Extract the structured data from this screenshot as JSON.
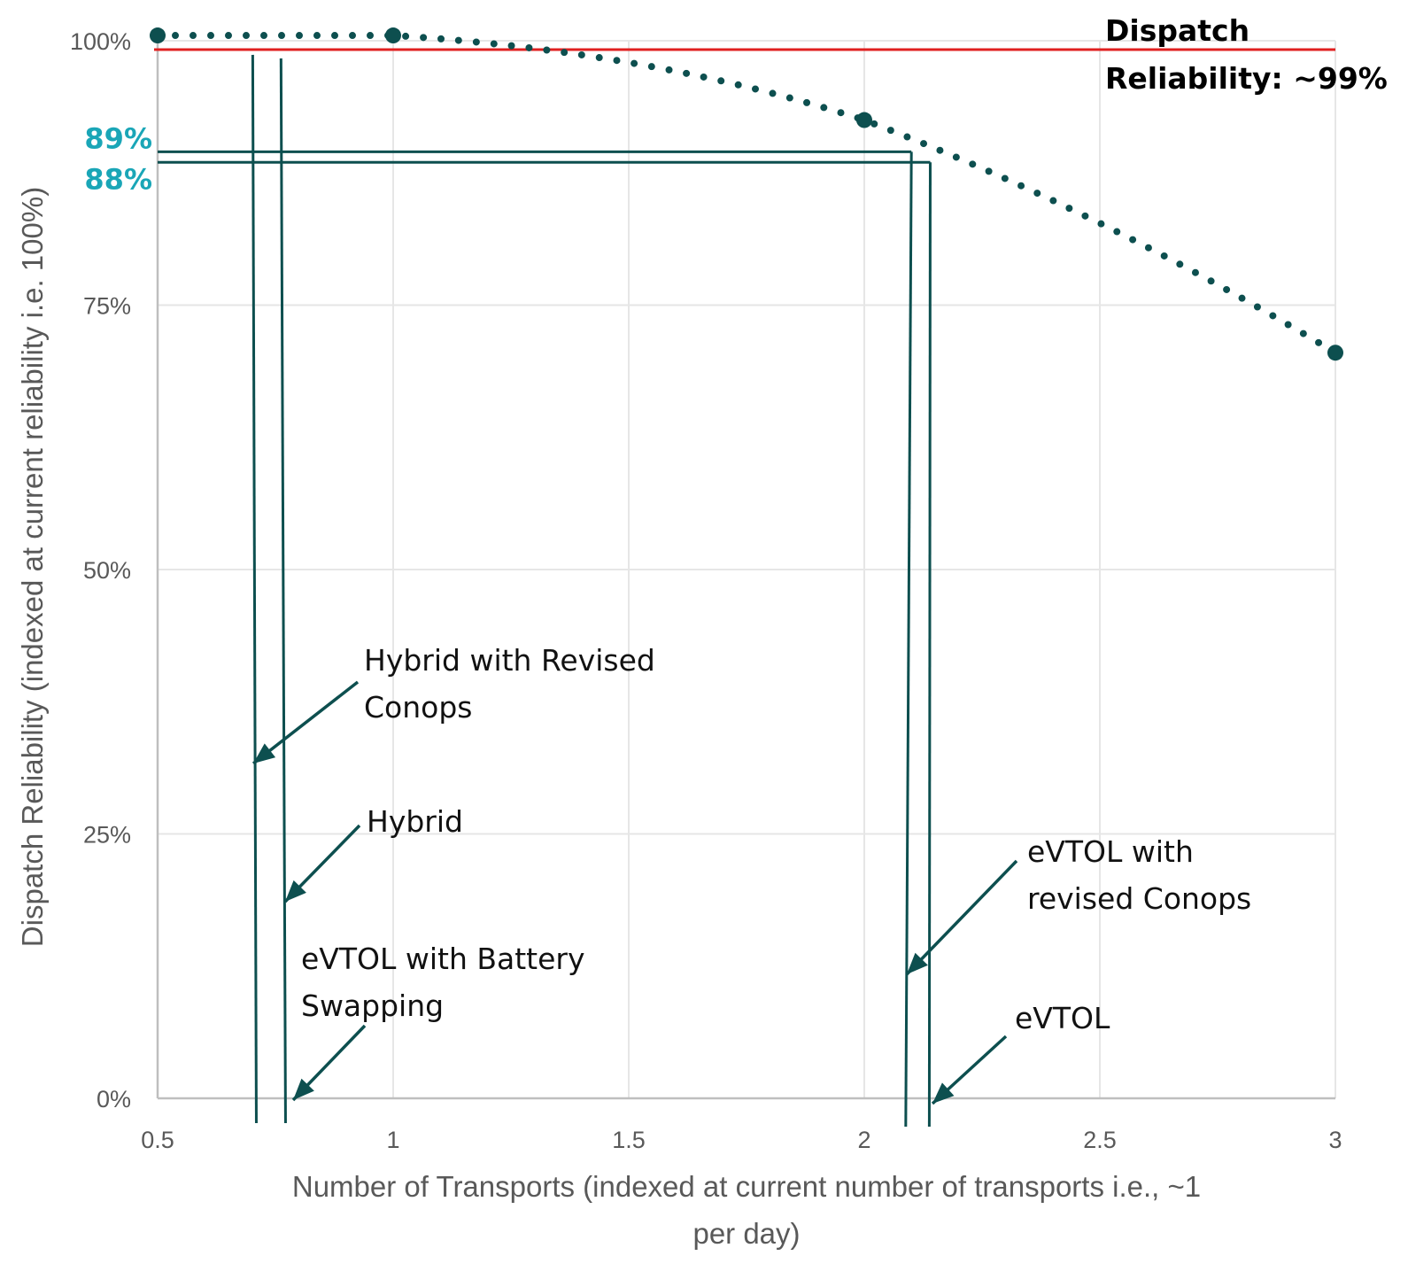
{
  "chart_data": {
    "type": "scatter",
    "xlabel_lines": [
      "Number of Transports (indexed at current number of transports i.e., ~1",
      "per day)"
    ],
    "ylabel": "Dispatch Reliability (indexed at current reliability i.e. 100%)",
    "xlim": [
      0.5,
      3
    ],
    "ylim": [
      0,
      100
    ],
    "x_ticks": [
      0.5,
      1,
      1.5,
      2,
      2.5,
      3
    ],
    "x_tick_labels": [
      "0.5",
      "1",
      "1.5",
      "2",
      "2.5",
      "3"
    ],
    "y_ticks": [
      0,
      25,
      50,
      75,
      100
    ],
    "y_tick_labels": [
      "0%",
      "25%",
      "50%",
      "75%",
      "100%"
    ],
    "grid": true,
    "reliability_curve": {
      "style": "dotted",
      "color": "#0d4f4f",
      "points": [
        [
          0.5,
          100.5
        ],
        [
          1,
          100.5
        ],
        [
          2,
          92.5
        ],
        [
          3,
          70.5
        ]
      ]
    },
    "threshold_line": {
      "value": 99,
      "color": "#e02020",
      "label_lines": [
        "Dispatch",
        "Reliability:   ~99%"
      ]
    },
    "horizontal_levels": [
      {
        "value": 89,
        "label": "89%",
        "x_end": 2.1
      },
      {
        "value": 88,
        "label": "88%",
        "x_end": 2.14
      }
    ],
    "vertical_markers": [
      {
        "x": 0.7,
        "label_lines": [
          "Hybrid with Revised",
          "Conops"
        ]
      },
      {
        "x": 0.76,
        "label_lines": [
          "Hybrid"
        ]
      },
      {
        "x": 2.09,
        "label_lines": [
          "eVTOL with",
          "revised Conops"
        ]
      },
      {
        "x": 2.14,
        "label_lines": [
          "eVTOL"
        ]
      }
    ],
    "extra_annotation": {
      "label_lines": [
        "eVTOL with Battery",
        "Swapping"
      ]
    },
    "colors": {
      "marker_lines": "#0d4f4f",
      "grid": "#e6e6e6",
      "axis": "#bfbfbf",
      "level_labels": "#1aa6b7"
    }
  }
}
